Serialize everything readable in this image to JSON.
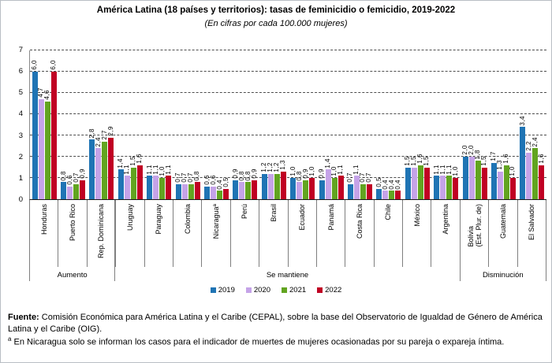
{
  "title": "América Latina (18 países y territorios): tasas de feminicidio o femicidio, 2019-2022",
  "subtitle": "(En cifras por cada 100.000 mujeres)",
  "chart_data": {
    "type": "bar",
    "title": "América Latina (18 países y territorios): tasas de feminicidio o femicidio, 2019-2022",
    "subtitle": "(En cifras por cada 100.000 mujeres)",
    "ylim": [
      0,
      7
    ],
    "yticks": [
      0,
      1,
      2,
      3,
      4,
      5,
      6,
      7
    ],
    "grid": "horizontal-dashed",
    "legend_position": "bottom-center",
    "decimal_separator": ",",
    "categories": [
      "Honduras",
      "Puerto Rico",
      "Rep. Dominicana",
      "Uruguay",
      "Paraguay",
      "Colombia",
      "Nicaraguaª",
      "Perú",
      "Brasil",
      "Ecuador",
      "Panamá",
      "Costa Rica",
      "Chile",
      "México",
      "Argentina",
      "Bolivia\n(Est. Plur. de)",
      "Guatemala",
      "El Salvador"
    ],
    "series": [
      {
        "name": "2019",
        "color": "#1F74B4",
        "values": [
          6.0,
          0.8,
          2.8,
          1.4,
          1.1,
          0.7,
          0.6,
          0.9,
          1.2,
          1.0,
          0.9,
          0.7,
          0.5,
          1.5,
          1.1,
          2.0,
          1.7,
          3.4
        ]
      },
      {
        "name": "2020",
        "color": "#C5A3E8",
        "values": [
          4.7,
          0.6,
          2.4,
          1.1,
          1.1,
          0.7,
          0.6,
          0.8,
          1.2,
          0.8,
          1.4,
          1.1,
          0.4,
          1.5,
          1.1,
          2.0,
          1.3,
          2.2
        ]
      },
      {
        "name": "2021",
        "color": "#62A420",
        "values": [
          4.6,
          0.7,
          2.7,
          1.5,
          1.0,
          0.7,
          0.4,
          0.8,
          1.2,
          0.9,
          1.0,
          0.7,
          0.4,
          1.6,
          1.1,
          1.8,
          1.6,
          2.4
        ]
      },
      {
        "name": "2022",
        "color": "#C00023",
        "values": [
          6.0,
          0.9,
          2.9,
          1.6,
          1.1,
          0.8,
          0.5,
          0.9,
          1.3,
          1.0,
          1.1,
          0.7,
          0.4,
          1.5,
          1.0,
          1.5,
          1.0,
          1.6
        ]
      }
    ],
    "category_groups": [
      {
        "label": "Aumento",
        "span": 3
      },
      {
        "label": "Se mantiene",
        "span": 12
      },
      {
        "label": "Disminución",
        "span": 3
      }
    ]
  },
  "footer": {
    "source_label": "Fuente:",
    "source_text": " Comisión Económica para América Latina y el Caribe (CEPAL), sobre la base del Observatorio de Igualdad de Género de América Latina y el Caribe (OIG).",
    "note_superscript": "a",
    "note_text": " En Nicaragua solo se informan los casos para el indicador de muertes de mujeres ocasionadas por su pareja o expareja íntima."
  }
}
